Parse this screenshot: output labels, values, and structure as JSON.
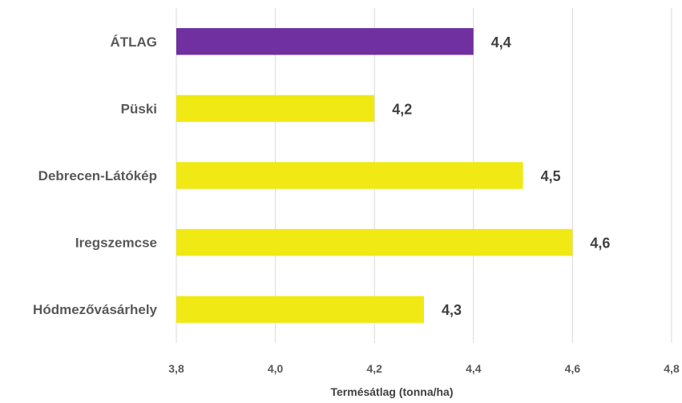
{
  "chart_data": {
    "type": "bar",
    "orientation": "horizontal",
    "categories": [
      "ÁTLAG",
      "Püski",
      "Debrecen-Látókép",
      "Iregszemcse",
      "Hódmezővásárhely"
    ],
    "values": [
      4.4,
      4.2,
      4.5,
      4.6,
      4.3
    ],
    "value_labels": [
      "4,4",
      "4,2",
      "4,5",
      "4,6",
      "4,3"
    ],
    "bar_colors": [
      "#7030a0",
      "#f0e914",
      "#f0e914",
      "#f0e914",
      "#f0e914"
    ],
    "xlabel": "Termésátlag (tonna/ha)",
    "ylabel": "",
    "xlim": [
      3.8,
      4.8
    ],
    "xticks": [
      3.8,
      4.0,
      4.2,
      4.4,
      4.6,
      4.8
    ],
    "xtick_labels": [
      "3,8",
      "4,0",
      "4,2",
      "4,4",
      "4,6",
      "4,8"
    ],
    "grid": true,
    "legend": "none"
  }
}
